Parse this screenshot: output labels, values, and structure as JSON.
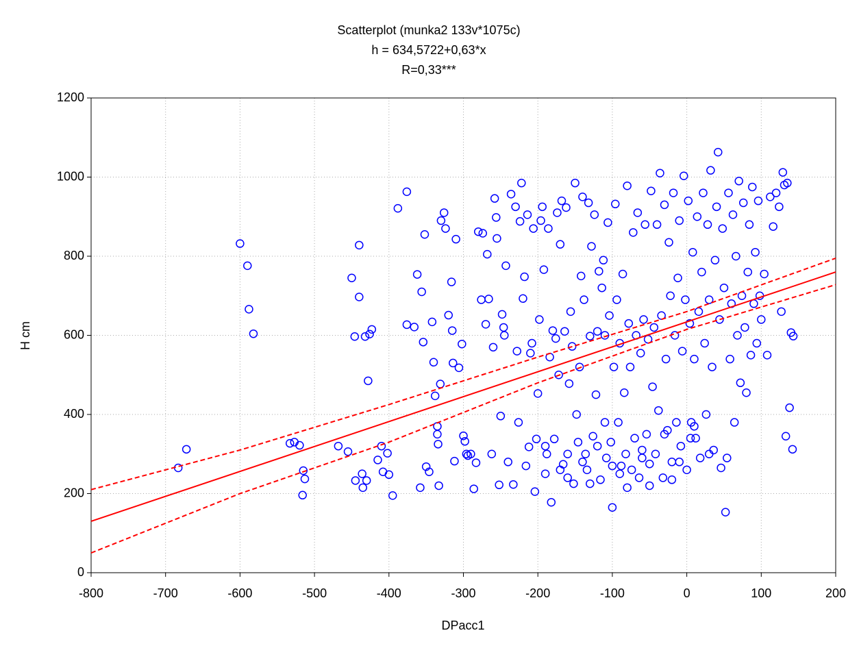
{
  "chart_data": {
    "type": "scatter",
    "title": "Scatterplot (munka2 133v*1075c)",
    "subtitle": [
      "h = 634,5722+0,63*x",
      "R=0,33***"
    ],
    "x_label": "DPacc1",
    "y_label": "H  cm",
    "xlim": [
      -800,
      200
    ],
    "xticks": [
      -800,
      -700,
      -600,
      -500,
      -400,
      -300,
      -200,
      -100,
      0,
      100,
      200
    ],
    "ylim": [
      0,
      1200
    ],
    "yticks": [
      0,
      200,
      400,
      600,
      800,
      1000,
      1200
    ],
    "grid": true,
    "series": [
      {
        "kind": "points",
        "color": "#0000ff",
        "x": [
          -683,
          -672,
          -600,
          -590,
          -588,
          -582,
          -533,
          -527,
          -520,
          -515,
          -513,
          -516,
          -468,
          -455,
          -450,
          -446,
          -445,
          -440,
          -440,
          -436,
          -435,
          -432,
          -430,
          -428,
          -426,
          -423,
          -415,
          -410,
          -408,
          -402,
          -400,
          -395,
          -388,
          -376,
          -376,
          -366,
          -362,
          -358,
          -356,
          -354,
          -352,
          -350,
          -346,
          -342,
          -340,
          -338,
          -335,
          -335,
          -334,
          -333,
          -331,
          -330,
          -326,
          -324,
          -320,
          -316,
          -315,
          -314,
          -312,
          -310,
          -306,
          -302,
          -300,
          -298,
          -296,
          -294,
          -290,
          -286,
          -283,
          -280,
          -276,
          -274,
          -270,
          -268,
          -266,
          -262,
          -260,
          -258,
          -256,
          -255,
          -252,
          -250,
          -248,
          -246,
          -245,
          -243,
          -240,
          -236,
          -233,
          -230,
          -228,
          -226,
          -224,
          -222,
          -220,
          -218,
          -216,
          -214,
          -212,
          -210,
          -208,
          -206,
          -204,
          -202,
          -200,
          -198,
          -196,
          -194,
          -192,
          -190,
          -188,
          -186,
          -184,
          -182,
          -180,
          -178,
          -176,
          -174,
          -172,
          -170,
          -168,
          -166,
          -164,
          -162,
          -160,
          -158,
          -156,
          -154,
          -152,
          -150,
          -148,
          -146,
          -144,
          -142,
          -140,
          -138,
          -136,
          -134,
          -132,
          -130,
          -128,
          -126,
          -124,
          -122,
          -120,
          -118,
          -116,
          -114,
          -112,
          -110,
          -108,
          -106,
          -104,
          -102,
          -100,
          -98,
          -96,
          -94,
          -92,
          -90,
          -88,
          -86,
          -84,
          -82,
          -80,
          -78,
          -76,
          -74,
          -72,
          -70,
          -68,
          -66,
          -64,
          -62,
          -60,
          -58,
          -56,
          -54,
          -52,
          -50,
          -48,
          -46,
          -44,
          -42,
          -40,
          -38,
          -36,
          -34,
          -32,
          -30,
          -28,
          -26,
          -24,
          -22,
          -20,
          -18,
          -16,
          -14,
          -12,
          -10,
          -8,
          -6,
          -4,
          -2,
          0,
          2,
          4,
          6,
          8,
          10,
          12,
          14,
          16,
          18,
          20,
          22,
          24,
          26,
          28,
          30,
          32,
          34,
          36,
          38,
          40,
          42,
          44,
          46,
          48,
          50,
          52,
          54,
          56,
          58,
          60,
          62,
          64,
          66,
          68,
          70,
          72,
          74,
          76,
          78,
          80,
          82,
          84,
          86,
          88,
          90,
          92,
          94,
          96,
          98,
          100,
          104,
          108,
          112,
          116,
          120,
          124,
          127,
          129,
          131,
          133,
          135,
          138,
          140,
          142,
          143,
          -190,
          -170,
          -140,
          -120,
          -90,
          -60,
          -30,
          -10,
          10,
          30,
          -110,
          -80,
          -50,
          -20,
          5,
          -160,
          -130,
          -100
        ],
        "values": [
          265,
          312,
          832,
          776,
          666,
          604,
          327,
          330,
          322,
          258,
          237,
          196,
          320,
          306,
          745,
          597,
          233,
          828,
          697,
          250,
          215,
          597,
          233,
          485,
          603,
          615,
          285,
          320,
          255,
          302,
          248,
          195,
          921,
          963,
          627,
          621,
          754,
          215,
          710,
          583,
          855,
          268,
          255,
          634,
          532,
          447,
          370,
          350,
          325,
          220,
          477,
          890,
          910,
          870,
          651,
          735,
          612,
          530,
          282,
          843,
          518,
          578,
          346,
          332,
          300,
          296,
          300,
          212,
          278,
          862,
          690,
          858,
          628,
          805,
          692,
          300,
          570,
          946,
          898,
          845,
          222,
          396,
          653,
          620,
          600,
          776,
          280,
          957,
          223,
          925,
          560,
          380,
          888,
          985,
          693,
          748,
          270,
          905,
          318,
          555,
          580,
          870,
          205,
          338,
          453,
          640,
          890,
          925,
          766,
          250,
          300,
          870,
          545,
          178,
          612,
          338,
          592,
          910,
          500,
          830,
          940,
          274,
          610,
          923,
          300,
          478,
          660,
          572,
          225,
          985,
          400,
          330,
          520,
          750,
          950,
          690,
          300,
          260,
          935,
          598,
          825,
          345,
          905,
          450,
          610,
          762,
          235,
          720,
          790,
          600,
          290,
          885,
          650,
          330,
          165,
          520,
          932,
          690,
          380,
          580,
          270,
          755,
          455,
          300,
          978,
          630,
          520,
          260,
          860,
          340,
          600,
          910,
          240,
          555,
          310,
          640,
          880,
          350,
          590,
          275,
          965,
          470,
          620,
          300,
          880,
          410,
          1010,
          650,
          240,
          930,
          540,
          360,
          835,
          700,
          280,
          960,
          600,
          380,
          745,
          890,
          320,
          560,
          1003,
          690,
          260,
          940,
          630,
          380,
          810,
          540,
          340,
          900,
          660,
          290,
          760,
          960,
          580,
          400,
          880,
          690,
          1017,
          520,
          310,
          790,
          925,
          1063,
          640,
          265,
          870,
          720,
          153,
          290,
          960,
          540,
          680,
          905,
          380,
          800,
          600,
          990,
          480,
          700,
          935,
          620,
          455,
          760,
          880,
          550,
          975,
          680,
          810,
          580,
          940,
          700,
          640,
          755,
          550,
          950,
          875,
          960,
          925,
          660,
          1012,
          980,
          345,
          985,
          417,
          607,
          312,
          598,
          320,
          260,
          280,
          320,
          250,
          290,
          350,
          280,
          370,
          300,
          380,
          215,
          220,
          235,
          340,
          240,
          225,
          270
        ]
      },
      {
        "kind": "line",
        "dash": false,
        "color": "#ff0000",
        "x": [
          -800,
          200
        ],
        "values": [
          130,
          760
        ]
      },
      {
        "kind": "line",
        "dash": true,
        "color": "#ff0000",
        "x": [
          -800,
          -600,
          -400,
          -200,
          0,
          200
        ],
        "values": [
          210,
          310,
          425,
          545,
          660,
          795
        ]
      },
      {
        "kind": "line",
        "dash": true,
        "color": "#ff0000",
        "x": [
          -800,
          -600,
          -400,
          -200,
          0,
          200
        ],
        "values": [
          50,
          200,
          330,
          480,
          615,
          728
        ]
      }
    ]
  }
}
